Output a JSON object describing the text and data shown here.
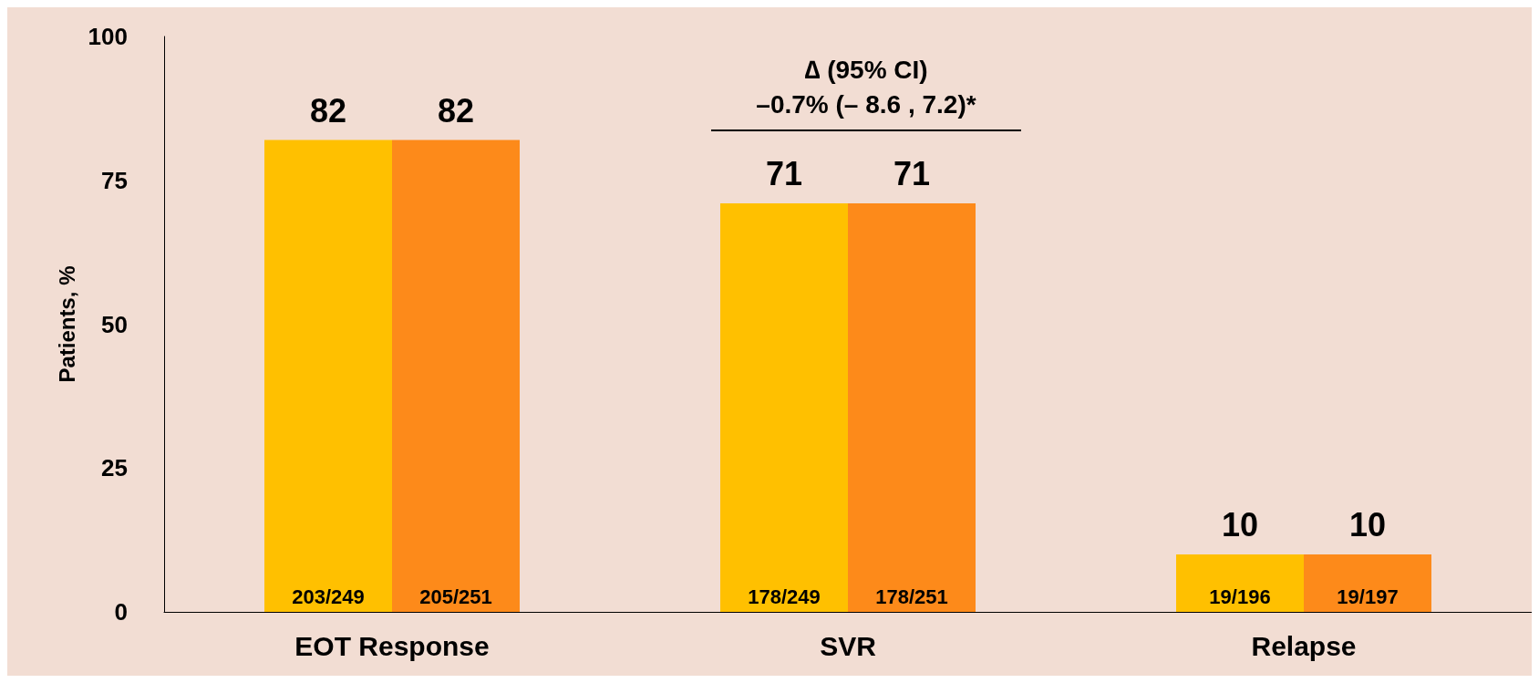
{
  "chart_data": {
    "type": "bar",
    "categories": [
      "EOT Response",
      "SVR",
      "Relapse"
    ],
    "series": [
      {
        "color": "#ffc000",
        "values": [
          82,
          71,
          10
        ],
        "value_labels": [
          "82",
          "71",
          "10"
        ]
      },
      {
        "color": "#fd8a1a",
        "values": [
          82,
          71,
          10
        ],
        "value_labels": [
          "82",
          "71",
          "10"
        ]
      }
    ],
    "ylabel": "Patients, %",
    "ylim": [
      0,
      100
    ],
    "yticks": [
      0,
      25,
      50,
      75,
      100
    ],
    "grid": false,
    "annotations": [
      "∆ (95% CI)\n–0.7% (– 8.6 , 7.2)*",
      {
        "text": "203/249",
        "x": "EOT Response",
        "y": 0
      },
      {
        "text": "205/251",
        "x": "EOT Response",
        "y": 0
      },
      {
        "text": "178/249",
        "x": "SVR",
        "y": 0
      },
      {
        "text": "178/251",
        "x": "SVR",
        "y": 0
      },
      {
        "text": "19/196",
        "x": "Relapse",
        "y": 0
      },
      {
        "text": "19/197",
        "x": "Relapse",
        "y": 0
      }
    ]
  }
}
